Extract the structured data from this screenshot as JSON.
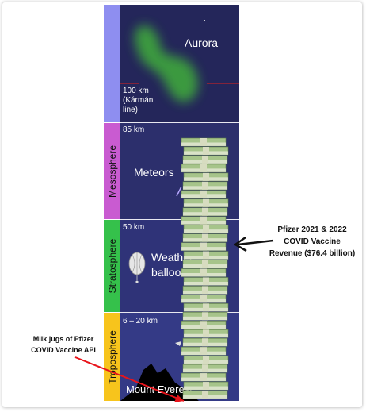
{
  "layers": [
    {
      "id": "thermosphere",
      "band_color": "#8e8ef0",
      "sky_color": "#24265a",
      "altitude": "100 km\n(Kármán\nline)",
      "feature": "Aurora"
    },
    {
      "id": "mesosphere",
      "name": "Mesosphere",
      "band_color": "#c95bd1",
      "sky_color": "#2c2f6c",
      "altitude": "85 km",
      "feature": "Meteors"
    },
    {
      "id": "stratosphere",
      "name": "Stratosphere",
      "band_color": "#35c14b",
      "sky_color": "#2f3378",
      "altitude": "50 km",
      "feature": "Weather\nballoon"
    },
    {
      "id": "troposphere",
      "name": "Troposphere",
      "band_color": "#f7c41c",
      "sky_color": "#343a86",
      "altitude": "6 – 20 km",
      "feature": "Mount Everest"
    }
  ],
  "annotations": {
    "revenue": "Pfizer 2021 & 2022\nCOVID Vaccine\nRevenue ($76.4 billion)",
    "milk_jugs": "Milk jugs of Pfizer\nCOVID Vaccine API"
  },
  "money_stack": {
    "bundle_count": 30
  },
  "colors": {
    "karman_line": "#e0201c",
    "arrow_red": "#e8141b",
    "arrow_black": "#111111",
    "aurora": "#3fae3a",
    "money": "#a6c48a"
  }
}
